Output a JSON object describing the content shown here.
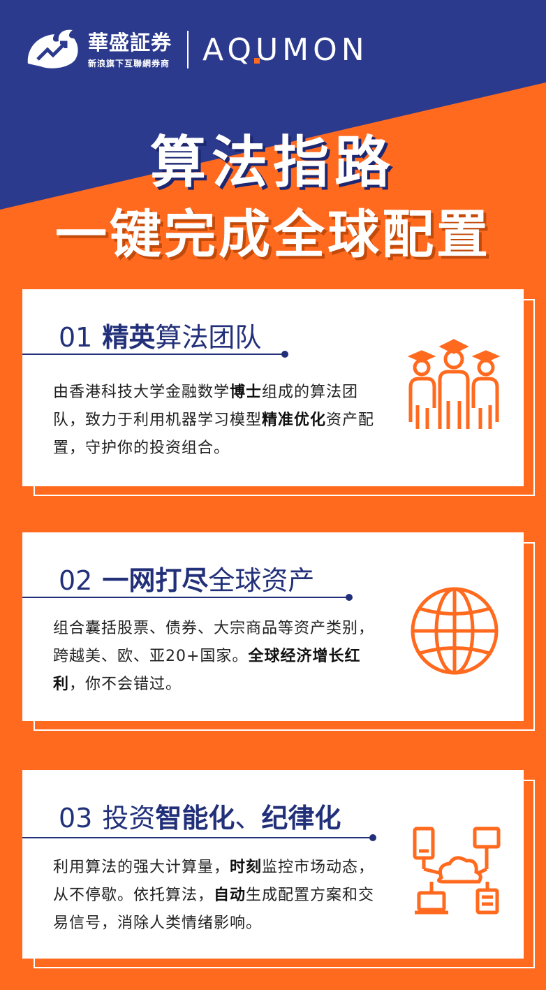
{
  "header": {
    "brand_cn": "華盛証券",
    "brand_sub": "新浪旗下互聯網券商",
    "partner": "AQUMON"
  },
  "headline": {
    "line1": "算法指路",
    "line2": "一键完成全球配置"
  },
  "colors": {
    "orange": "#ff6a1f",
    "navy": "#2b3a8c",
    "title_navy": "#22307a"
  },
  "cards": [
    {
      "num": "01",
      "title_bold": "精英",
      "title_rest": "算法团队",
      "icon": "graduates-team-icon",
      "body": [
        {
          "t": "由香港科技大学金融数学",
          "b": false
        },
        {
          "t": "博士",
          "b": true
        },
        {
          "t": "组成的算法团队，致力于利用机器学习模型",
          "b": false
        },
        {
          "t": "精准优化",
          "b": true
        },
        {
          "t": "资产配置，守护你的投资组合。",
          "b": false
        }
      ]
    },
    {
      "num": "02",
      "title_bold": "一网打尽",
      "title_rest": "全球资产",
      "icon": "globe-icon",
      "body": [
        {
          "t": "组合囊括股票、债券、大宗商品等资产类别，跨越美、欧、亚20+国家。",
          "b": false
        },
        {
          "t": "全球经济增长红利",
          "b": true
        },
        {
          "t": "，你不会错过。",
          "b": false
        }
      ]
    },
    {
      "num": "03",
      "title_pre": "投资",
      "title_bold": "智能化",
      "title_mid": "、",
      "title_bold2": "纪律化",
      "icon": "cloud-network-icon",
      "body": [
        {
          "t": "利用算法的强大计算量，",
          "b": false
        },
        {
          "t": "时刻",
          "b": true
        },
        {
          "t": "监控市场动态，从不停歇。依托算法，",
          "b": false
        },
        {
          "t": "自动",
          "b": true
        },
        {
          "t": "生成配置方案和交易信号，消除人类情绪影响。",
          "b": false
        }
      ]
    }
  ]
}
